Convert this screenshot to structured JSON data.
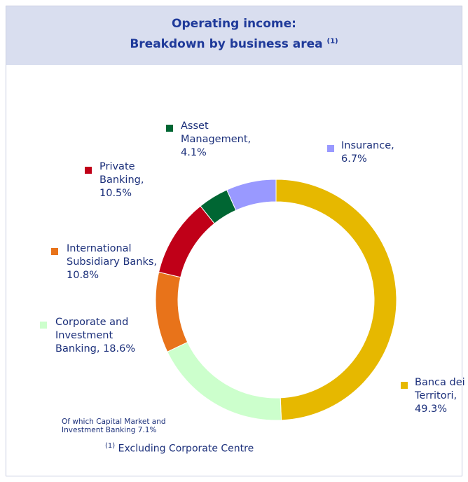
{
  "title_line1": "Operating income:",
  "title_line2": "Breakdown by business area",
  "title_note_mark": "(1)",
  "footnote_mark": "(1)",
  "footnote": "Excluding Corporate Centre",
  "chart_data": {
    "type": "donut",
    "categories": [
      "Banca dei Territori,",
      "Corporate and Investment Banking,",
      "International Subsidiary Banks,",
      "Private Banking,",
      "Asset Management,",
      "Insurance,"
    ],
    "values": [
      49.3,
      18.6,
      10.8,
      10.5,
      4.1,
      6.7
    ],
    "value_labels": [
      "49.3%",
      "18.6%",
      "10.8%",
      "10.5%",
      "4.1%",
      "6.7%"
    ],
    "colors": [
      "#e6b800",
      "#ccffcc",
      "#e8731a",
      "#c00018",
      "#006633",
      "#9999ff"
    ],
    "annotation": "Of which Capital Market and Investment Banking 7.1%"
  }
}
